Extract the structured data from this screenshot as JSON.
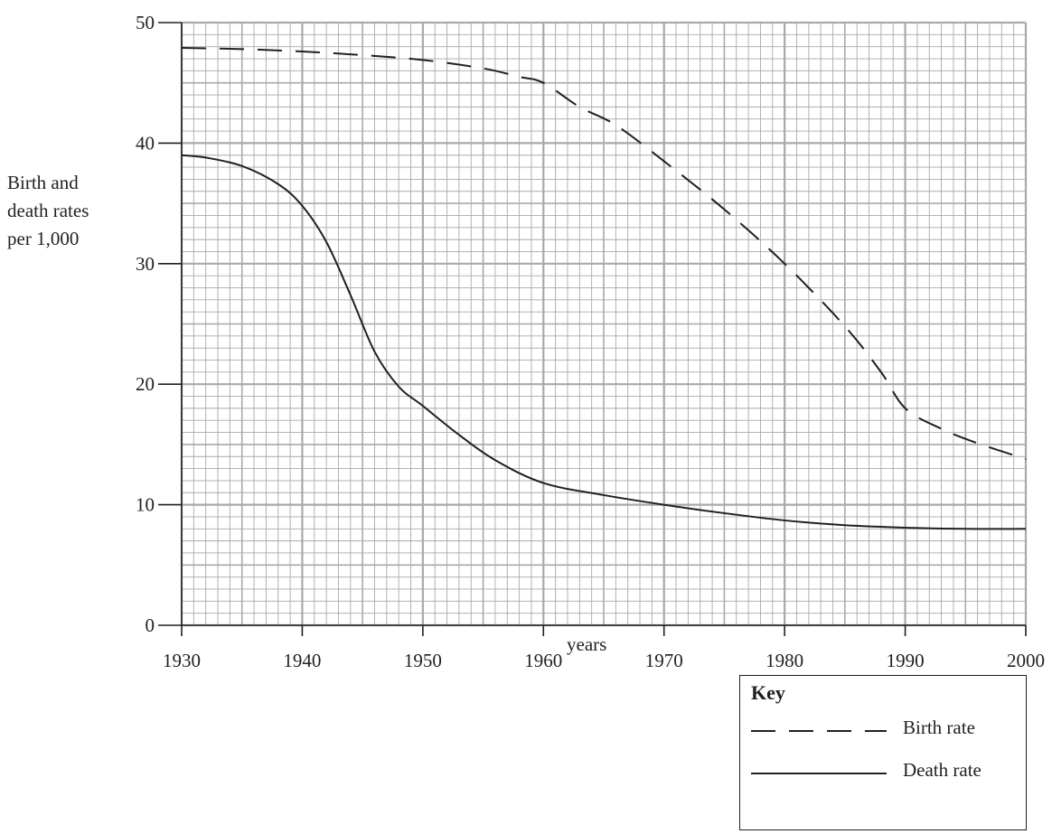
{
  "chart_data": {
    "type": "line",
    "title": "",
    "xlabel": "years",
    "ylabel": [
      "Birth and",
      "death rates",
      "per 1,000"
    ],
    "xlim": [
      1930,
      2000
    ],
    "ylim": [
      0,
      50
    ],
    "x_ticks": [
      1930,
      1940,
      1950,
      1960,
      1970,
      1980,
      1990,
      2000
    ],
    "y_ticks": [
      0,
      10,
      20,
      30,
      40,
      50
    ],
    "grid": true,
    "legend": {
      "title": "Key",
      "placement": "bottom-right"
    },
    "series": [
      {
        "name": "Birth rate",
        "style": "dashed",
        "x": [
          1930,
          1935,
          1940,
          1945,
          1950,
          1955,
          1958,
          1960,
          1963,
          1966,
          1970,
          1975,
          1980,
          1985,
          1988,
          1990,
          1993,
          1996,
          2000
        ],
        "y": [
          47.9,
          47.8,
          47.6,
          47.3,
          46.9,
          46.2,
          45.5,
          45.0,
          43.0,
          41.5,
          38.5,
          34.5,
          30.0,
          24.8,
          21.0,
          18.0,
          16.3,
          15.1,
          13.8
        ]
      },
      {
        "name": "Death rate",
        "style": "solid",
        "x": [
          1930,
          1932,
          1935,
          1938,
          1940,
          1942,
          1944,
          1946,
          1948,
          1950,
          1953,
          1956,
          1960,
          1965,
          1970,
          1975,
          1980,
          1985,
          1990,
          1995,
          2000
        ],
        "y": [
          39.0,
          38.8,
          38.1,
          36.6,
          34.8,
          31.8,
          27.4,
          22.7,
          19.8,
          18.2,
          15.8,
          13.7,
          11.8,
          10.8,
          10.0,
          9.3,
          8.7,
          8.3,
          8.1,
          8.0,
          8.0
        ]
      }
    ]
  }
}
